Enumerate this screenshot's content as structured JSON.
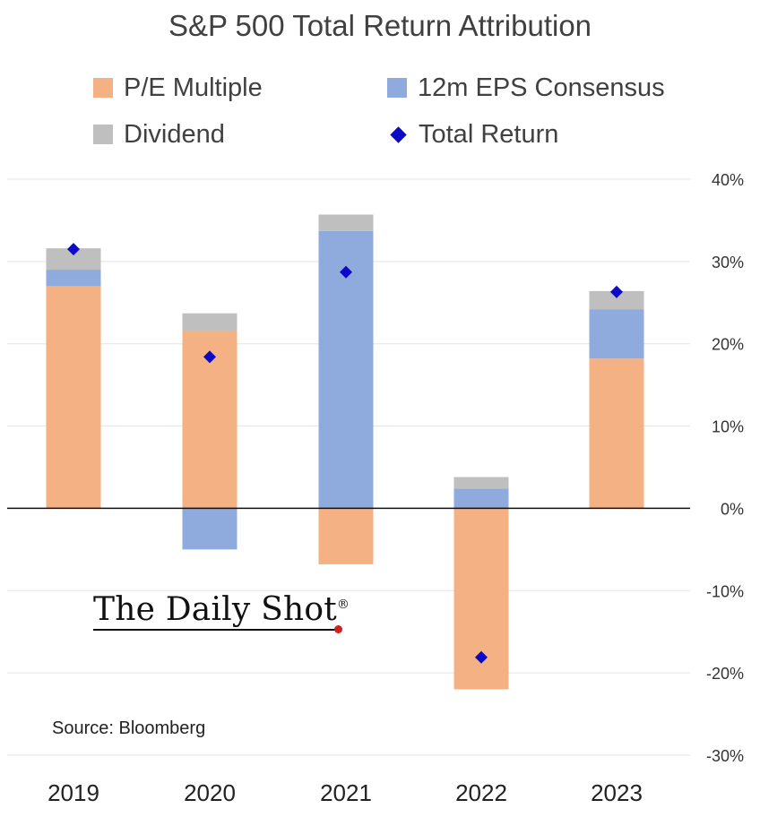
{
  "chart_data": {
    "type": "bar",
    "stacked": true,
    "title": "S&P 500 Total Return Attribution",
    "categories": [
      "2019",
      "2020",
      "2021",
      "2022",
      "2023"
    ],
    "series": [
      {
        "name": "P/E Multiple",
        "color": "#f4b183",
        "values": [
          27.0,
          21.5,
          -6.8,
          -22.0,
          18.2
        ]
      },
      {
        "name": "12m EPS Consensus",
        "color": "#8faadc",
        "values": [
          2.0,
          -5.0,
          33.7,
          2.4,
          6.0
        ]
      },
      {
        "name": "Dividend",
        "color": "#bfbfbf",
        "values": [
          2.6,
          2.2,
          2.0,
          1.4,
          2.2
        ]
      }
    ],
    "total_return": {
      "name": "Total Return",
      "color": "#0a0ac8",
      "values": [
        31.5,
        18.4,
        28.7,
        -18.1,
        26.3
      ]
    },
    "y_ticks": [
      "40%",
      "30%",
      "20%",
      "10%",
      "0%",
      "-10%",
      "-20%",
      "-30%"
    ],
    "y_tick_values": [
      40,
      30,
      20,
      10,
      0,
      -10,
      -20,
      -30
    ],
    "ylim": [
      -30,
      40
    ],
    "y_axis_side": "right",
    "grid": true,
    "legend_position": "top"
  },
  "legend": {
    "pe": "P/E Multiple",
    "eps": "12m EPS Consensus",
    "dividend": "Dividend",
    "total": "Total Return"
  },
  "source": "Source: Bloomberg",
  "watermark": {
    "text": "The Daily Shot",
    "mark": "®"
  }
}
